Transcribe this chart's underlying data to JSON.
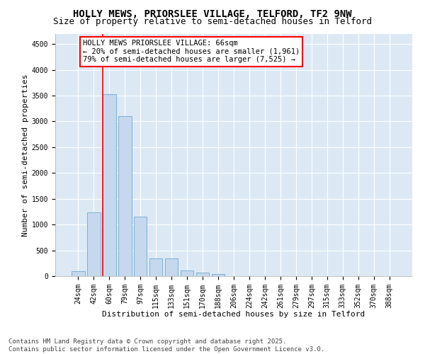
{
  "title": "HOLLY MEWS, PRIORSLEE VILLAGE, TELFORD, TF2 9NW",
  "subtitle": "Size of property relative to semi-detached houses in Telford",
  "xlabel": "Distribution of semi-detached houses by size in Telford",
  "ylabel": "Number of semi-detached properties",
  "categories": [
    "24sqm",
    "42sqm",
    "60sqm",
    "79sqm",
    "97sqm",
    "115sqm",
    "133sqm",
    "151sqm",
    "170sqm",
    "188sqm",
    "206sqm",
    "224sqm",
    "242sqm",
    "261sqm",
    "279sqm",
    "297sqm",
    "315sqm",
    "333sqm",
    "352sqm",
    "370sqm",
    "388sqm"
  ],
  "values": [
    90,
    1230,
    3530,
    3100,
    1150,
    340,
    340,
    110,
    65,
    40,
    0,
    0,
    0,
    0,
    0,
    0,
    0,
    0,
    0,
    0,
    0
  ],
  "bar_color": "#C5D8EE",
  "bar_edge_color": "#7EB0D5",
  "red_line_index": 2,
  "annotation_title": "HOLLY MEWS PRIORSLEE VILLAGE: 66sqm",
  "annotation_line1": "← 20% of semi-detached houses are smaller (1,961)",
  "annotation_line2": "79% of semi-detached houses are larger (7,525) →",
  "ylim": [
    0,
    4700
  ],
  "yticks": [
    0,
    500,
    1000,
    1500,
    2000,
    2500,
    3000,
    3500,
    4000,
    4500
  ],
  "plot_bg_color": "#DCE9F5",
  "grid_color": "#FFFFFF",
  "footer_line1": "Contains HM Land Registry data © Crown copyright and database right 2025.",
  "footer_line2": "Contains public sector information licensed under the Open Government Licence v3.0.",
  "title_fontsize": 10,
  "subtitle_fontsize": 9,
  "axis_label_fontsize": 8,
  "tick_fontsize": 7,
  "annotation_fontsize": 7.5,
  "footer_fontsize": 6.5
}
